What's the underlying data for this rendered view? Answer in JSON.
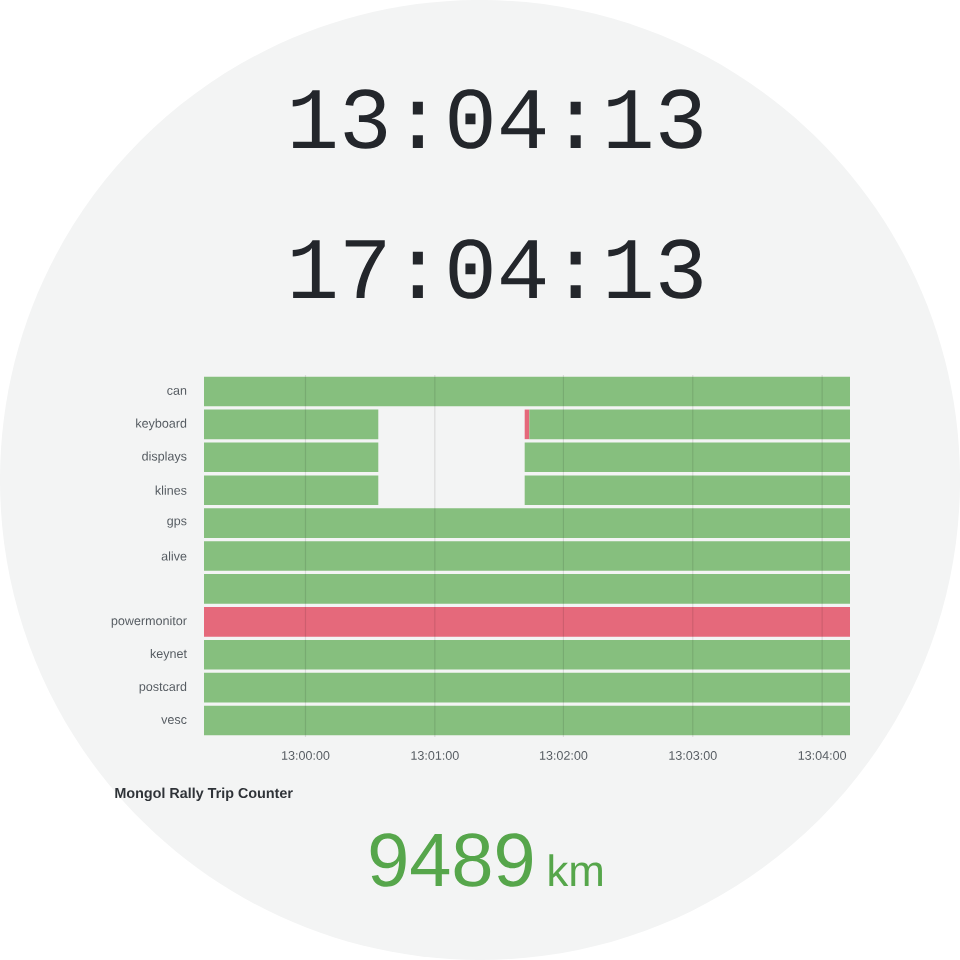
{
  "chart_data": [
    {
      "type": "other",
      "annotations": [
        "13:04:13",
        "17:04:13"
      ]
    },
    {
      "type": "bar",
      "orientation": "horizontal",
      "grid": "x",
      "categories": [
        "can",
        "keyboard",
        "displays",
        "klines",
        "gps",
        "alive",
        null,
        "powermonitor",
        "keynet",
        "postcard",
        "vesc"
      ],
      "xlim": [
        12.9869,
        13.0703
      ],
      "xticks": [
        {
          "value": 13,
          "label": "13:00:00"
        },
        {
          "value": 13.0167,
          "label": "13:01:00"
        },
        {
          "value": 13.0333,
          "label": "13:02:00"
        },
        {
          "value": 13.05,
          "label": "13:03:00"
        },
        {
          "value": 13.0667,
          "label": "13:04:00"
        }
      ],
      "series": [
        {
          "color": "#86bf7e",
          "values": [
            0.0834,
            0.0225,
            0.0225,
            0.0225,
            0.0834,
            0.0834,
            0.0834,
            null,
            0.0834,
            0.0834,
            0.0834
          ],
          "base": [
            12.9869,
            12.9869,
            12.9869,
            12.9869,
            12.9869,
            12.9869,
            12.9869,
            null,
            12.9869,
            12.9869,
            12.9869
          ]
        },
        {
          "color": "#e5697b",
          "values": [
            null,
            0.0006,
            null,
            null,
            null,
            null,
            null,
            0.0834,
            null,
            null,
            null
          ],
          "base": [
            null,
            13.0283,
            null,
            null,
            null,
            null,
            null,
            12.9869,
            null,
            null,
            null
          ]
        },
        {
          "color": "#86bf7e",
          "values": [
            null,
            0.0414,
            0.042,
            0.042,
            null,
            null,
            null,
            null,
            null,
            null,
            null
          ],
          "base": [
            null,
            13.0289,
            13.0283,
            13.0283,
            null,
            null,
            null,
            null,
            null,
            null,
            null
          ]
        }
      ]
    },
    {
      "type": "other",
      "title": "Mongol Rally Trip Counter",
      "annotations": [
        "9489",
        "km"
      ]
    }
  ]
}
